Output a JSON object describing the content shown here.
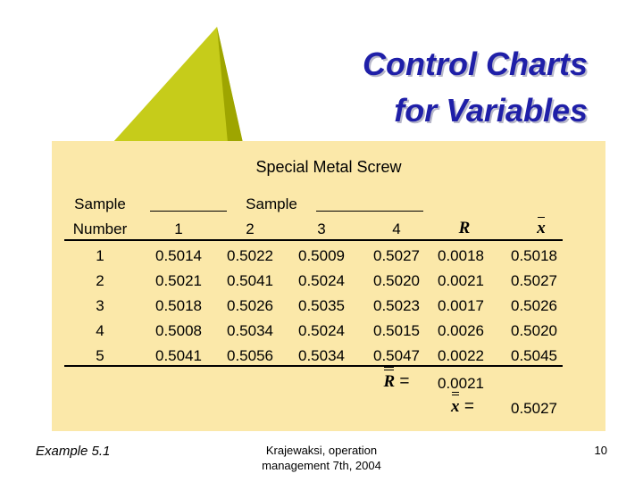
{
  "title": {
    "line1": "Control Charts",
    "line2": "for Variables"
  },
  "table": {
    "caption": "Special Metal Screw",
    "group_header": "Sample",
    "col_sample_label_line1": "Sample",
    "col_sample_label_line2": "Number",
    "sample_cols": [
      "1",
      "2",
      "3",
      "4"
    ],
    "r_col": "R",
    "xbar_col": "x",
    "rows": [
      {
        "n": "1",
        "v": [
          "0.5014",
          "0.5022",
          "0.5009",
          "0.5027"
        ],
        "r": "0.0018",
        "xbar": "0.5018"
      },
      {
        "n": "2",
        "v": [
          "0.5021",
          "0.5041",
          "0.5024",
          "0.5020"
        ],
        "r": "0.0021",
        "xbar": "0.5027"
      },
      {
        "n": "3",
        "v": [
          "0.5018",
          "0.5026",
          "0.5035",
          "0.5023"
        ],
        "r": "0.0017",
        "xbar": "0.5026"
      },
      {
        "n": "4",
        "v": [
          "0.5008",
          "0.5034",
          "0.5024",
          "0.5015"
        ],
        "r": "0.0026",
        "xbar": "0.5020"
      },
      {
        "n": "5",
        "v": [
          "0.5041",
          "0.5056",
          "0.5034",
          "0.5047"
        ],
        "r": "0.0022",
        "xbar": "0.5045"
      }
    ],
    "rbar_symbol": "R",
    "rbar_eq": "=",
    "rbar_value": "0.0021",
    "xbarbar_symbol": "x",
    "xbarbar_eq": "=",
    "xbarbar_value": "0.5027"
  },
  "footer": {
    "example": "Example 5.1",
    "source_line1": "Krajewaksi, operation",
    "source_line2": "management 7th, 2004",
    "page": "10"
  },
  "colors": {
    "panel": "#fbe8a9",
    "title": "#1f1fa8",
    "triangle": "#b5bd00"
  }
}
